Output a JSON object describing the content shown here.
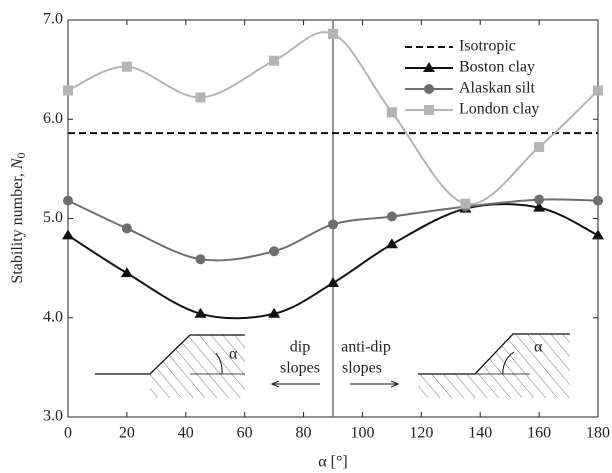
{
  "chart_data": {
    "type": "line",
    "xlabel": "α [°]",
    "ylabel": [
      "Stability number,",
      "N",
      "0"
    ],
    "xlim": [
      0,
      180
    ],
    "xticks": [
      0,
      20,
      40,
      60,
      80,
      100,
      120,
      140,
      160,
      180
    ],
    "ylim": [
      3,
      7
    ],
    "yticks": [
      {
        "value": 3,
        "label": "3.0"
      },
      {
        "value": 4,
        "label": "4.0"
      },
      {
        "value": 5,
        "label": "5.0"
      },
      {
        "value": 6,
        "label": "6.0"
      },
      {
        "value": 7,
        "label": "7.0"
      }
    ],
    "vline": 90,
    "legend": "upper right",
    "series": [
      {
        "name": "Isotropic",
        "color": "#111111",
        "linestyle": "dashed",
        "marker": "none",
        "x": [
          0,
          180
        ],
        "values": [
          5.86,
          5.86
        ]
      },
      {
        "name": "Boston clay",
        "color": "#111111",
        "linestyle": "solid",
        "marker": "triangle",
        "x": [
          0,
          20,
          45,
          70,
          90,
          110,
          135,
          160,
          180
        ],
        "values": [
          4.83,
          4.45,
          4.04,
          4.04,
          4.35,
          4.74,
          5.1,
          5.11,
          4.83
        ]
      },
      {
        "name": "Alaskan silt",
        "color": "#6e6e6e",
        "linestyle": "solid",
        "marker": "circle",
        "x": [
          0,
          20,
          45,
          70,
          90,
          110,
          135,
          160,
          180
        ],
        "values": [
          5.18,
          4.9,
          4.59,
          4.67,
          4.94,
          5.02,
          5.12,
          5.19,
          5.18
        ]
      },
      {
        "name": "London clay",
        "color": "#b4b4b4",
        "linestyle": "solid",
        "marker": "square",
        "x": [
          0,
          20,
          45,
          70,
          90,
          110,
          135,
          160,
          180
        ],
        "values": [
          6.29,
          6.53,
          6.22,
          6.59,
          6.86,
          6.07,
          5.15,
          5.72,
          6.29
        ]
      }
    ],
    "annotations": {
      "dip": [
        "dip",
        "slopes"
      ],
      "anti_dip": [
        "anti-dip",
        "slopes"
      ],
      "alpha_left": "α",
      "alpha_right": "α"
    }
  }
}
